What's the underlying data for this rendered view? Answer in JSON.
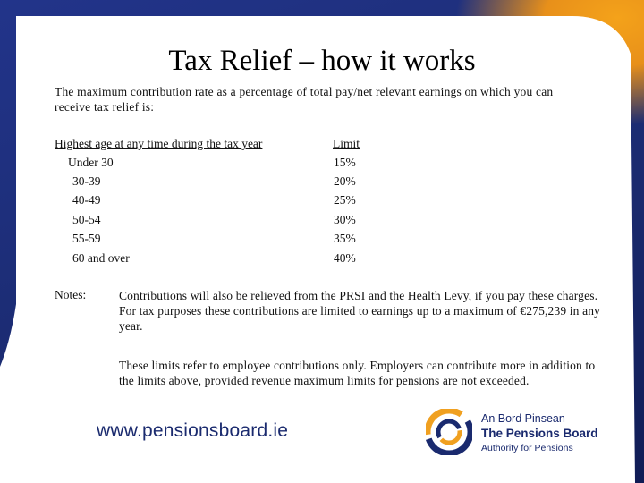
{
  "slide": {
    "title": "Tax Relief – how it works",
    "intro": "The maximum contribution rate as a percentage of total pay/net relevant earnings on which you can receive tax relief is:"
  },
  "table": {
    "header_age": "Highest age at any time during the tax year",
    "header_limit": "Limit",
    "rows": [
      {
        "age": "Under 30",
        "limit": "15%"
      },
      {
        "age": "30-39",
        "limit": "20%"
      },
      {
        "age": "40-49",
        "limit": "25%"
      },
      {
        "age": "50-54",
        "limit": "30%"
      },
      {
        "age": "55-59",
        "limit": "35%"
      },
      {
        "age": "60 and over",
        "limit": "40%"
      }
    ]
  },
  "notes": {
    "label": "Notes:",
    "paragraph1": "Contributions will also be relieved from the PRSI and the Health Levy, if you pay these charges. For tax purposes these contributions are limited to earnings up to a maximum of €275,239 in any year.",
    "paragraph2": "These limits refer to employee contributions only.  Employers can contribute more in addition to the limits above, provided revenue maximum limits for pensions are not exceeded."
  },
  "footer": {
    "url": "www.pensionsboard.ie",
    "logo_line1": "An Bord Pinsean -",
    "logo_line2": "The Pensions Board",
    "logo_line3": "Authority for Pensions"
  },
  "colors": {
    "navy": "#1a2a6e",
    "gold": "#e8901a"
  }
}
